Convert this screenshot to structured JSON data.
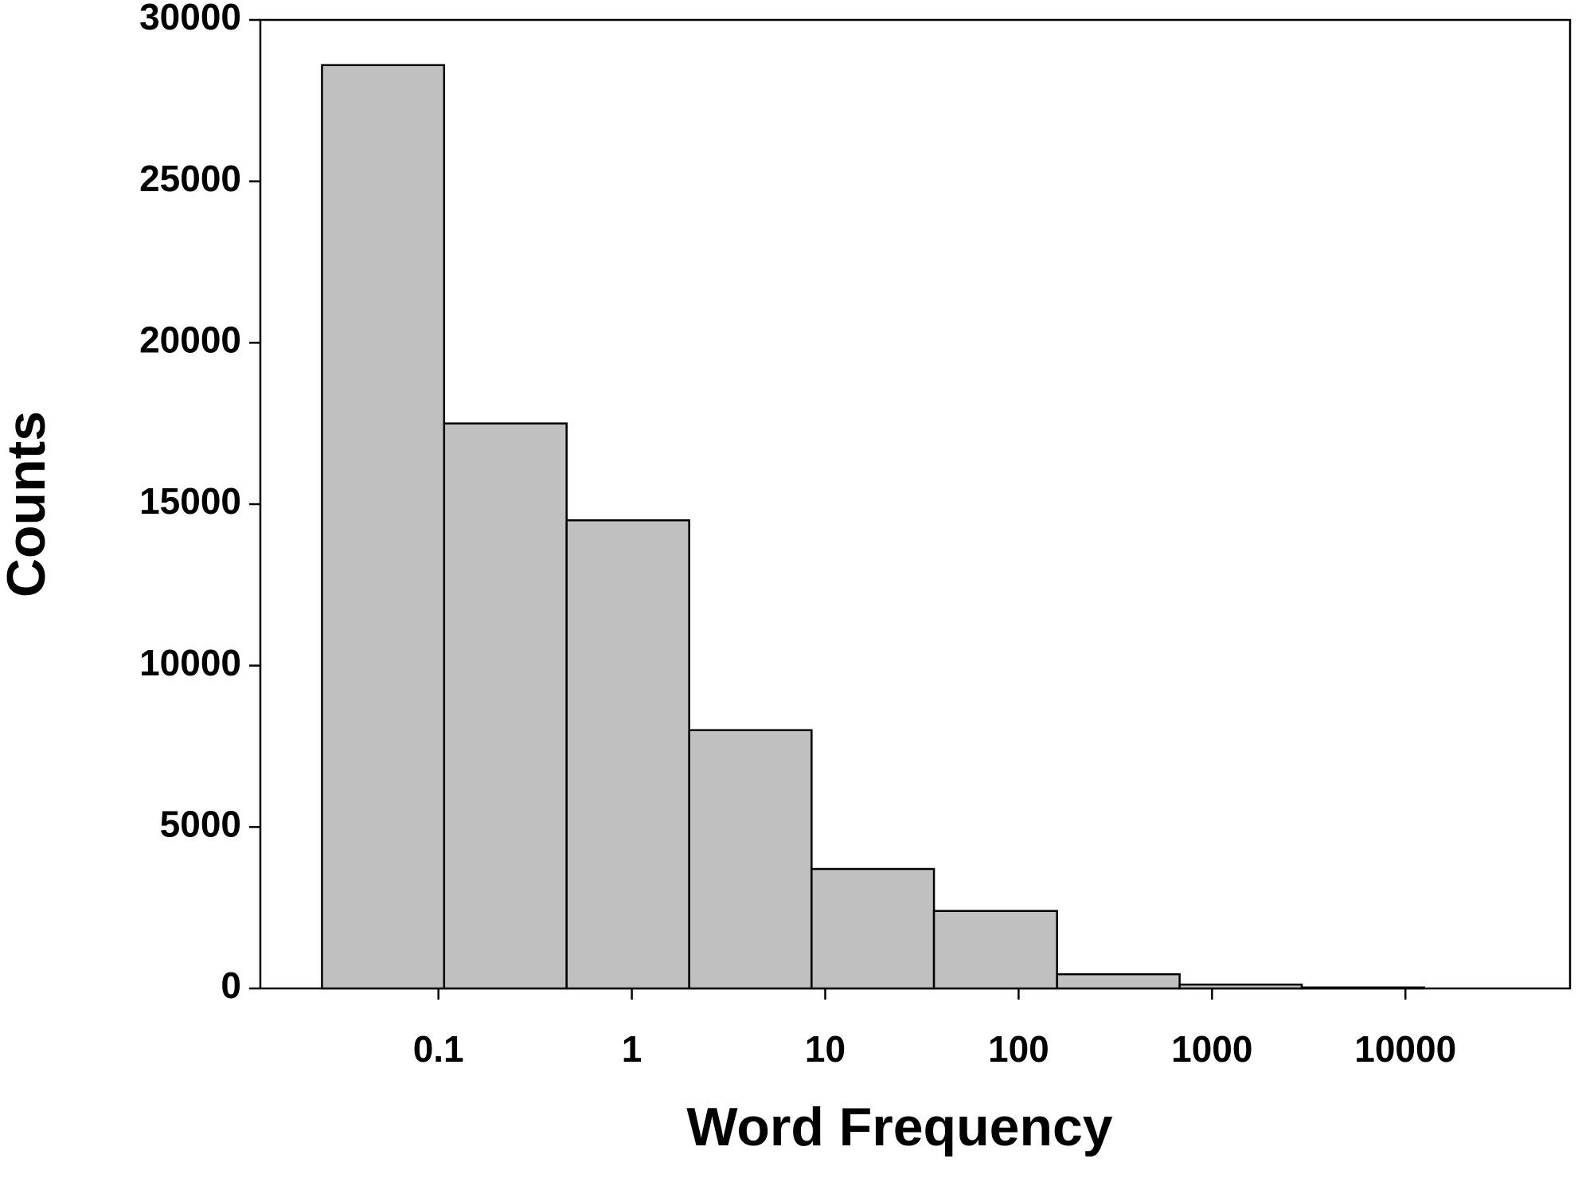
{
  "chart_data": {
    "type": "histogram",
    "xlabel": "Word Frequency",
    "ylabel": "Counts",
    "bins": [
      0.025,
      0.107,
      0.46,
      1.98,
      8.5,
      36.5,
      158,
      680,
      2910,
      12500
    ],
    "values": [
      28600,
      17500,
      14500,
      8000,
      3700,
      2400,
      440,
      120,
      30
    ],
    "color": "#c0c0c0",
    "xscale": "log",
    "xlim": [
      0.012,
      71000
    ],
    "xticks": [
      0.1,
      1,
      10,
      100,
      1000,
      10000
    ],
    "ylim": [
      0,
      30000
    ],
    "yticks": [
      0,
      5000,
      10000,
      15000,
      20000,
      25000,
      30000
    ]
  }
}
